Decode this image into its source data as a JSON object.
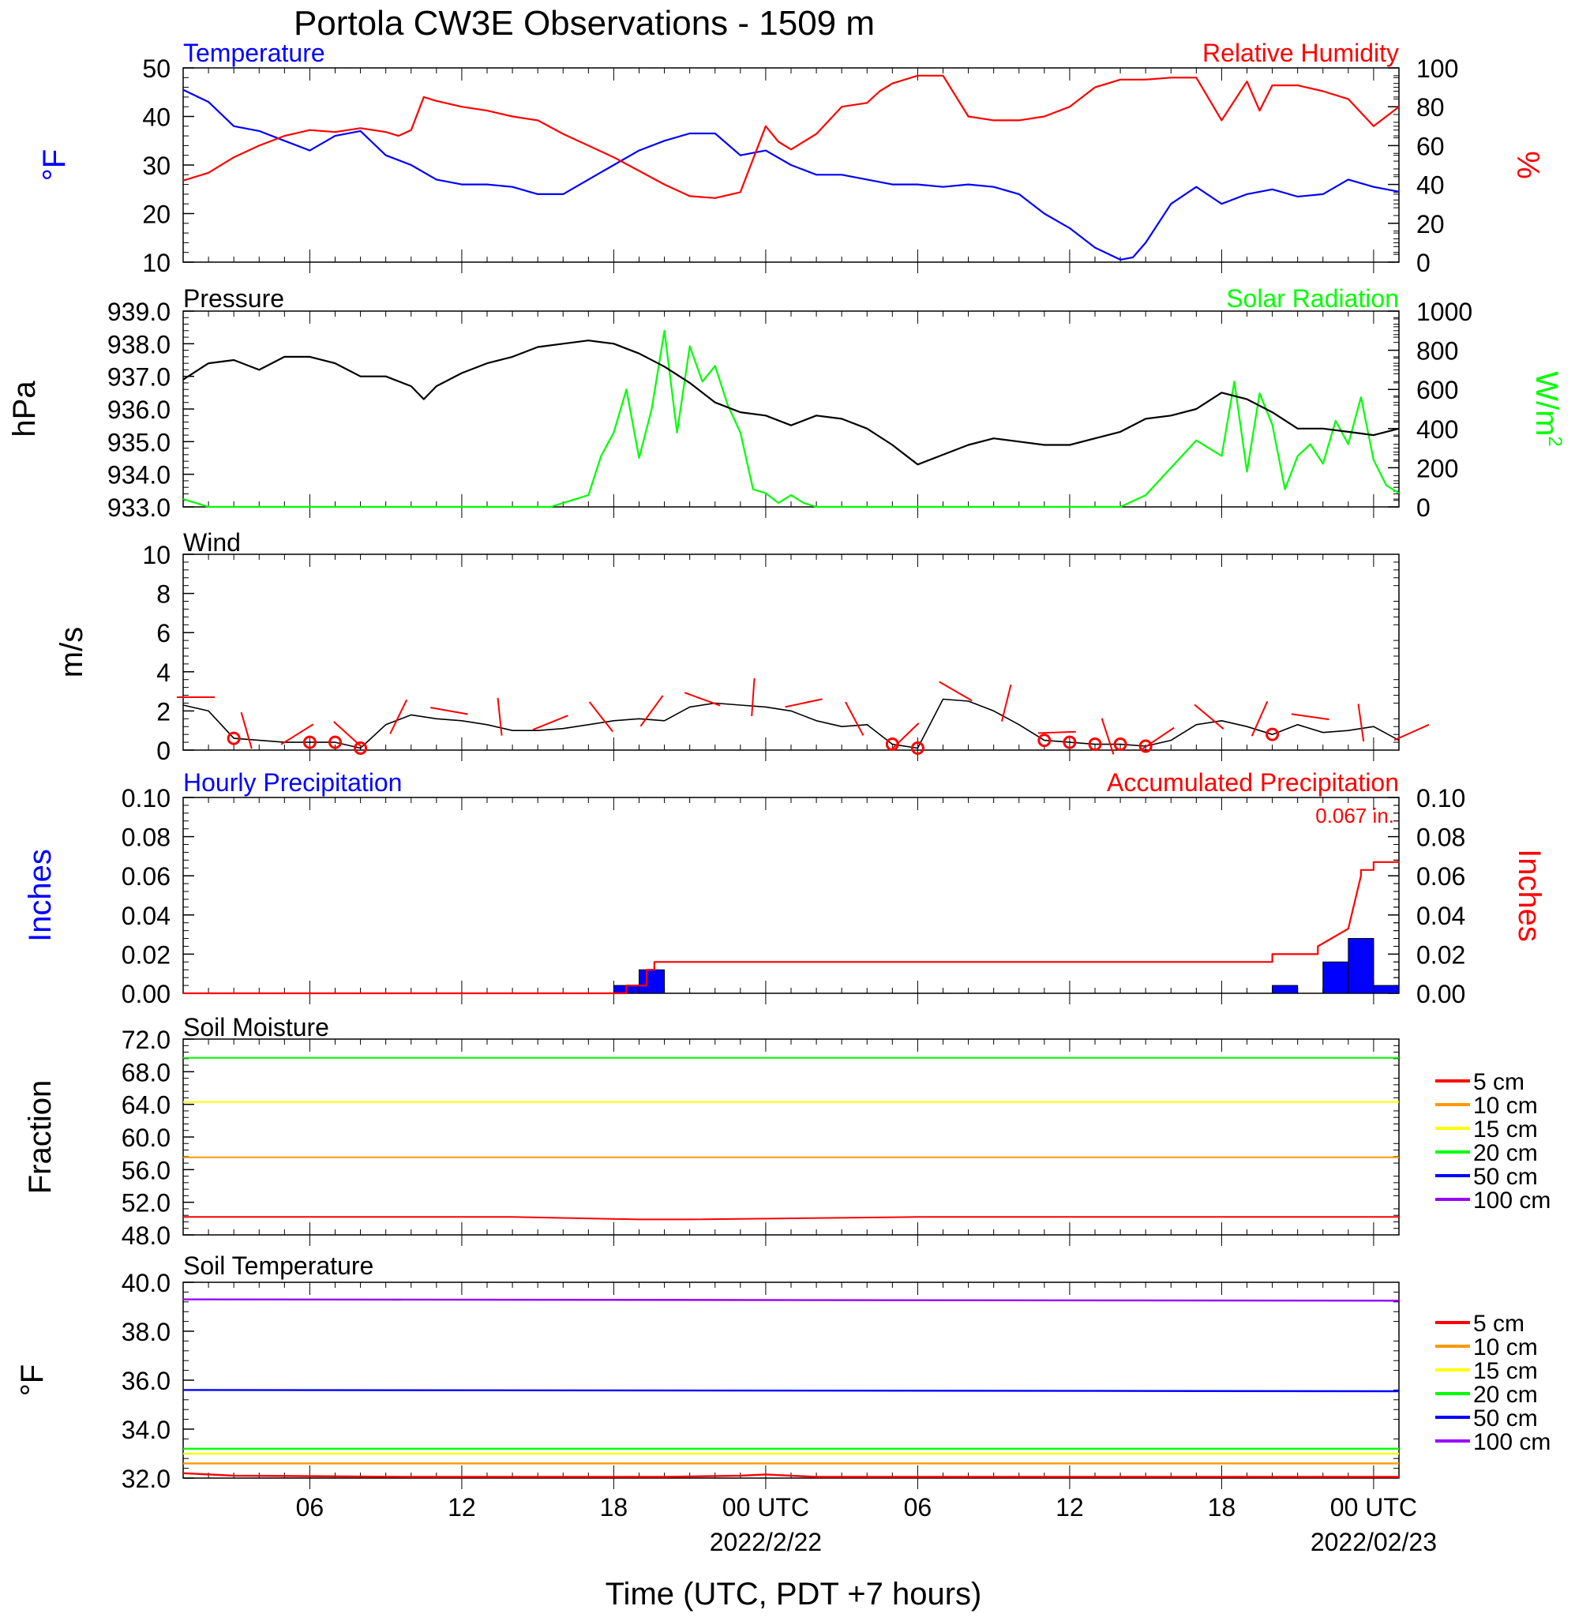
{
  "title": "Portola CW3E Observations - 1509 m",
  "x_axis": {
    "label": "Time (UTC, PDT +7 hours)",
    "ticks": [
      {
        "h": 6,
        "label": "06"
      },
      {
        "h": 12,
        "label": "12"
      },
      {
        "h": 18,
        "label": "18"
      },
      {
        "h": 24,
        "label": "00 UTC",
        "date": "2022/2/22"
      },
      {
        "h": 30,
        "label": "06"
      },
      {
        "h": 36,
        "label": "12"
      },
      {
        "h": 42,
        "label": "18"
      },
      {
        "h": 48,
        "label": "00 UTC",
        "date": "2022/02/23"
      }
    ],
    "range_hours": [
      1,
      49
    ]
  },
  "colors": {
    "temperature": "#0000ff",
    "humidity": "#ff0000",
    "pressure": "#000000",
    "solar": "#00ff00",
    "wind": "#000000",
    "wind_barb": "#ff0000",
    "hourly_precip": "#0000ff",
    "accum_precip": "#ff0000",
    "depth_5": "#ff0000",
    "depth_10": "#ff9900",
    "depth_15": "#ffff00",
    "depth_20": "#00ff00",
    "depth_50": "#0000ff",
    "depth_100": "#9900ff"
  },
  "panels": {
    "temp_rh": {
      "left_title": "Temperature",
      "right_title": "Relative Humidity",
      "left_unit": "°F",
      "right_unit": "%",
      "left_ticks": [
        "10",
        "20",
        "30",
        "40",
        "50"
      ],
      "right_ticks": [
        "0",
        "20",
        "40",
        "60",
        "80",
        "100"
      ]
    },
    "pressure_solar": {
      "left_title": "Pressure",
      "right_title": "Solar Radiation",
      "left_unit": "hPa",
      "right_unit": "W/m",
      "right_unit_sup": "2",
      "left_ticks": [
        "933.0",
        "934.0",
        "935.0",
        "936.0",
        "937.0",
        "938.0",
        "939.0"
      ],
      "right_ticks": [
        "0",
        "200",
        "400",
        "600",
        "800",
        "1000"
      ]
    },
    "wind": {
      "left_title": "Wind",
      "left_unit": "m/s",
      "left_ticks": [
        "0",
        "2",
        "4",
        "6",
        "8",
        "10"
      ]
    },
    "precip": {
      "left_title": "Hourly Precipitation",
      "right_title": "Accumulated Precipitation",
      "total_label": "0.067 in.",
      "left_unit": "Inches",
      "right_unit": "Inches",
      "left_ticks": [
        "0.00",
        "0.02",
        "0.04",
        "0.06",
        "0.08",
        "0.10"
      ],
      "right_ticks": [
        "0.00",
        "0.02",
        "0.04",
        "0.06",
        "0.08",
        "0.10"
      ]
    },
    "soil_moisture": {
      "left_title": "Soil Moisture",
      "left_unit": "Fraction",
      "left_ticks": [
        "48.0",
        "52.0",
        "56.0",
        "60.0",
        "64.0",
        "68.0",
        "72.0"
      ]
    },
    "soil_temp": {
      "left_title": "Soil Temperature",
      "left_unit": "°F",
      "left_ticks": [
        "32.0",
        "34.0",
        "36.0",
        "38.0",
        "40.0"
      ]
    }
  },
  "legend_labels": [
    "5 cm",
    "10 cm",
    "15 cm",
    "20 cm",
    "50 cm",
    "100 cm"
  ],
  "chart_data": [
    {
      "type": "line",
      "panel": "temp_rh",
      "x_unit": "hours from 2022-02-21 00 UTC",
      "ylim": [
        10,
        50
      ],
      "y2lim": [
        0,
        100
      ],
      "series": [
        {
          "name": "Temperature",
          "axis": "left",
          "unit": "°F",
          "x": [
            1,
            2,
            3,
            4,
            5,
            6,
            7,
            8,
            9,
            10,
            11,
            12,
            13,
            14,
            15,
            16,
            17,
            18,
            19,
            20,
            21,
            22,
            23,
            24,
            25,
            26,
            27,
            28,
            29,
            30,
            31,
            32,
            33,
            34,
            35,
            36,
            37,
            38,
            38.5,
            39,
            40,
            41,
            42,
            43,
            44,
            45,
            46,
            47,
            48,
            49
          ],
          "y": [
            45.5,
            43,
            38,
            37,
            35,
            33,
            36,
            37,
            32,
            30,
            27,
            26,
            26,
            25.5,
            24,
            24,
            27,
            30,
            33,
            35,
            36.5,
            36.5,
            32,
            33,
            30,
            28,
            28,
            27,
            26,
            26,
            25.5,
            26,
            25.5,
            24,
            20,
            17,
            13,
            10.5,
            11,
            14,
            22,
            25.5,
            22,
            24,
            25,
            23.5,
            24,
            27,
            25.5,
            24.5
          ]
        },
        {
          "name": "Relative Humidity",
          "axis": "right",
          "unit": "%",
          "x": [
            1,
            2,
            3,
            4,
            5,
            6,
            7,
            8,
            9,
            9.5,
            10,
            10.5,
            11,
            12,
            13,
            14,
            15,
            16,
            17,
            18,
            19,
            20,
            21,
            22,
            23,
            24,
            24.5,
            25,
            26,
            27,
            28,
            28.5,
            29,
            30,
            31,
            32,
            33,
            34,
            35,
            36,
            37,
            38,
            39,
            40,
            41,
            42,
            43,
            43.5,
            44,
            45,
            46,
            47,
            48,
            49
          ],
          "y": [
            42,
            46,
            54,
            60,
            65,
            68,
            67,
            69,
            67,
            65,
            68,
            85,
            83,
            80,
            78,
            75,
            73,
            66,
            60,
            54,
            47,
            40,
            34,
            33,
            36,
            70,
            62,
            58,
            66,
            80,
            82,
            88,
            92,
            96,
            96,
            75,
            73,
            73,
            75,
            80,
            90,
            94,
            94,
            95,
            95,
            73,
            93,
            78,
            91,
            91,
            88,
            84,
            70,
            80
          ]
        }
      ]
    },
    {
      "type": "line",
      "panel": "pressure_solar",
      "ylim": [
        933,
        939
      ],
      "y2lim": [
        0,
        1000
      ],
      "series": [
        {
          "name": "Pressure",
          "axis": "left",
          "unit": "hPa",
          "x": [
            1,
            2,
            3,
            4,
            5,
            6,
            7,
            8,
            9,
            10,
            10.5,
            11,
            12,
            13,
            14,
            15,
            16,
            17,
            18,
            19,
            20,
            21,
            22,
            23,
            24,
            25,
            26,
            27,
            28,
            29,
            30,
            31,
            32,
            33,
            34,
            35,
            36,
            37,
            38,
            39,
            40,
            41,
            42,
            43,
            44,
            45,
            46,
            47,
            48,
            49
          ],
          "y": [
            936.9,
            937.4,
            937.5,
            937.2,
            937.6,
            937.6,
            937.4,
            937.0,
            937.0,
            936.7,
            936.3,
            936.7,
            937.1,
            937.4,
            937.6,
            937.9,
            938.0,
            938.1,
            938.0,
            937.7,
            937.3,
            936.8,
            936.2,
            935.9,
            935.8,
            935.5,
            935.8,
            935.7,
            935.4,
            934.9,
            934.3,
            934.6,
            934.9,
            935.1,
            935.0,
            934.9,
            934.9,
            935.1,
            935.3,
            935.7,
            935.8,
            936.0,
            936.5,
            936.3,
            935.9,
            935.4,
            935.4,
            935.3,
            935.2,
            935.4
          ]
        },
        {
          "name": "Solar Radiation",
          "axis": "right",
          "unit": "W/m2",
          "x": [
            1,
            2,
            15.5,
            17,
            17.5,
            18,
            18.5,
            19,
            19.5,
            20,
            20.5,
            21,
            21.5,
            22,
            22.5,
            23,
            23.5,
            24,
            24.5,
            25,
            25.5,
            26,
            38,
            39,
            40,
            41,
            42,
            42.5,
            43,
            43.5,
            44,
            44.5,
            45,
            45.5,
            46,
            46.5,
            47,
            47.5,
            48,
            48.5,
            49
          ],
          "y": [
            40,
            0,
            0,
            60,
            260,
            380,
            600,
            250,
            500,
            900,
            380,
            820,
            640,
            720,
            520,
            380,
            90,
            70,
            20,
            60,
            20,
            0,
            0,
            60,
            200,
            340,
            260,
            640,
            180,
            580,
            420,
            90,
            260,
            320,
            220,
            440,
            320,
            560,
            240,
            110,
            70
          ]
        }
      ]
    },
    {
      "type": "line",
      "panel": "wind",
      "ylim": [
        0,
        10
      ],
      "series": [
        {
          "name": "Wind",
          "unit": "m/s",
          "x": [
            1,
            2,
            3,
            4,
            5,
            6,
            7,
            8,
            9,
            10,
            11,
            12,
            13,
            14,
            15,
            16,
            17,
            18,
            19,
            20,
            21,
            22,
            23,
            24,
            25,
            26,
            27,
            28,
            29,
            30,
            31,
            32,
            33,
            34,
            35,
            36,
            37,
            38,
            39,
            40,
            41,
            42,
            43,
            44,
            45,
            46,
            47,
            48,
            49
          ],
          "y": [
            2.3,
            2,
            0.6,
            0.5,
            0.4,
            0.4,
            0.4,
            0.1,
            1.3,
            1.8,
            1.6,
            1.5,
            1.3,
            1.0,
            1.0,
            1.1,
            1.3,
            1.5,
            1.6,
            1.5,
            2.2,
            2.4,
            2.3,
            2.2,
            2.0,
            1.5,
            1.2,
            1.3,
            0.3,
            0.1,
            2.6,
            2.5,
            2.0,
            1.3,
            0.5,
            0.4,
            0.3,
            0.3,
            0.2,
            0.5,
            1.3,
            1.5,
            1.2,
            0.8,
            1.3,
            0.9,
            1.0,
            1.2,
            0.5
          ]
        }
      ],
      "calm_hours": [
        3,
        6,
        7,
        8,
        29,
        30,
        35,
        36,
        37,
        38,
        39,
        44
      ]
    },
    {
      "type": "bar",
      "panel": "precip",
      "ylim": [
        0,
        0.1
      ],
      "y2lim": [
        0,
        0.1
      ],
      "series": [
        {
          "name": "Hourly Precipitation",
          "axis": "left",
          "unit": "in",
          "hour_start": [
            18,
            19,
            44,
            46,
            47,
            48
          ],
          "values": [
            0.004,
            0.012,
            0.004,
            0.016,
            0.028,
            0.004
          ]
        },
        {
          "name": "Accumulated Precipitation",
          "axis": "right",
          "type": "step",
          "unit": "in",
          "x": [
            1,
            18.5,
            18.5,
            19.3,
            19.3,
            19.6,
            19.6,
            44,
            44,
            45.8,
            45.8,
            47,
            47.5,
            47.5,
            48,
            48,
            49
          ],
          "y": [
            0,
            0,
            0.004,
            0.004,
            0.012,
            0.012,
            0.016,
            0.016,
            0.02,
            0.02,
            0.024,
            0.033,
            0.06,
            0.063,
            0.063,
            0.067,
            0.067
          ]
        }
      ]
    },
    {
      "type": "line",
      "panel": "soil_moisture",
      "ylim": [
        48,
        72
      ],
      "series": [
        {
          "name": "5 cm",
          "x": [
            1,
            14,
            19,
            21,
            30,
            49
          ],
          "y": [
            50.2,
            50.2,
            49.9,
            49.9,
            50.2,
            50.2
          ]
        },
        {
          "name": "10 cm",
          "x": [
            1,
            49
          ],
          "y": [
            57.5,
            57.5
          ]
        },
        {
          "name": "15 cm",
          "x": [
            1,
            49
          ],
          "y": [
            64.3,
            64.3
          ]
        },
        {
          "name": "20 cm",
          "x": [
            1,
            49
          ],
          "y": [
            69.7,
            69.7
          ]
        }
      ]
    },
    {
      "type": "line",
      "panel": "soil_temp",
      "ylim": [
        32,
        40
      ],
      "series": [
        {
          "name": "5 cm",
          "x": [
            1,
            3,
            10,
            20,
            23,
            24,
            26,
            35,
            49
          ],
          "y": [
            32.2,
            32.1,
            32.05,
            32.05,
            32.1,
            32.15,
            32.05,
            32.05,
            32.05
          ]
        },
        {
          "name": "10 cm",
          "x": [
            1,
            49
          ],
          "y": [
            32.6,
            32.6
          ]
        },
        {
          "name": "15 cm",
          "x": [
            1,
            49
          ],
          "y": [
            33.0,
            33.0
          ]
        },
        {
          "name": "20 cm",
          "x": [
            1,
            49
          ],
          "y": [
            33.2,
            33.2
          ]
        },
        {
          "name": "50 cm",
          "x": [
            1,
            49
          ],
          "y": [
            35.6,
            35.55
          ]
        },
        {
          "name": "100 cm",
          "x": [
            1,
            49
          ],
          "y": [
            39.3,
            39.25
          ]
        }
      ]
    }
  ]
}
